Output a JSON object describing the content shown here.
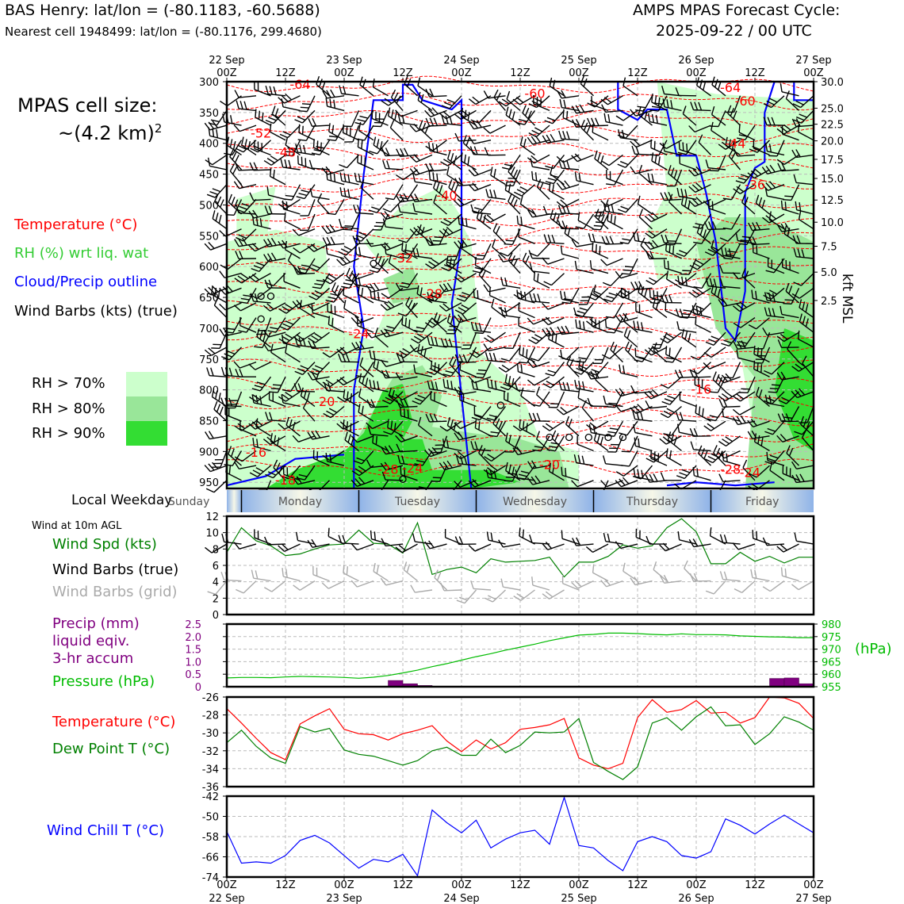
{
  "header": {
    "station_line": "BAS Henry: lat/lon = (-80.1183, -60.5688)",
    "cell_line": "Nearest cell 1948499: lat/lon = (-80.1176, 299.4680)",
    "model_line": "AMPS MPAS Forecast Cycle:",
    "cycle_line": "2025-09-22 / 00 UTC"
  },
  "legend": {
    "cell_size_label": "MPAS cell size:",
    "cell_size_value": "~(4.2 km)",
    "cell_size_exp": "2",
    "temperature": "Temperature (°C)",
    "rh": "RH (%) wrt liq. wat",
    "cloud": "Cloud/Precip outline",
    "wind": "Wind Barbs (kts) (true)",
    "rh70": "RH > 70%",
    "rh80": "RH > 80%",
    "rh90": "RH > 90%"
  },
  "colors": {
    "temp": "#ff0000",
    "rh": "#33cc33",
    "cloud": "#0000ff",
    "rh70": "#ccffcc",
    "rh80": "#99e699",
    "rh90": "#33dd33",
    "speed": "#008000",
    "precip": "#800080",
    "pressure": "#00bb00",
    "chill": "#0000ff",
    "grid_barb": "#aaaaaa",
    "weekday_band": "#8fb3e8"
  },
  "chart_data": {
    "time_axis": {
      "top_labels": [
        [
          "22 Sep",
          "00Z"
        ],
        [
          "",
          "12Z"
        ],
        [
          "23 Sep",
          "00Z"
        ],
        [
          "",
          "12Z"
        ],
        [
          "24 Sep",
          "00Z"
        ],
        [
          "",
          "12Z"
        ],
        [
          "25 Sep",
          "00Z"
        ],
        [
          "",
          "12Z"
        ],
        [
          "26 Sep",
          "00Z"
        ],
        [
          "",
          "12Z"
        ],
        [
          "27 Sep",
          "00Z"
        ]
      ],
      "bottom_labels": [
        [
          "00Z",
          "22 Sep"
        ],
        [
          "12Z",
          ""
        ],
        [
          "00Z",
          "23 Sep"
        ],
        [
          "12Z",
          ""
        ],
        [
          "00Z",
          "24 Sep"
        ],
        [
          "12Z",
          ""
        ],
        [
          "00Z",
          "25 Sep"
        ],
        [
          "12Z",
          ""
        ],
        [
          "00Z",
          "26 Sep"
        ],
        [
          "12Z",
          ""
        ],
        [
          "00Z",
          "27 Sep"
        ]
      ],
      "hours": [
        0,
        120
      ]
    },
    "weekday": {
      "label": "Local Weekday",
      "days": [
        {
          "name": "Sunday",
          "start": -5,
          "end": 3
        },
        {
          "name": "Monday",
          "start": 3,
          "end": 27
        },
        {
          "name": "Tuesday",
          "start": 27,
          "end": 51
        },
        {
          "name": "Wednesday",
          "start": 51,
          "end": 75
        },
        {
          "name": "Thursday",
          "start": 75,
          "end": 99
        },
        {
          "name": "Friday",
          "start": 99,
          "end": 120
        }
      ]
    },
    "profile": {
      "type": "time-height",
      "pressure_ticks": [
        300,
        350,
        400,
        450,
        500,
        550,
        600,
        650,
        700,
        750,
        800,
        850,
        900,
        950
      ],
      "pressure_range": [
        300,
        960
      ],
      "height_ticks": [
        {
          "label": "30.0",
          "p": 300
        },
        {
          "label": "25.0",
          "p": 343
        },
        {
          "label": "22.5",
          "p": 369
        },
        {
          "label": "20.0",
          "p": 396
        },
        {
          "label": "17.5",
          "p": 426
        },
        {
          "label": "15.0",
          "p": 457
        },
        {
          "label": "12.5",
          "p": 492
        },
        {
          "label": "10.0",
          "p": 528
        },
        {
          "label": "7.5",
          "p": 567
        },
        {
          "label": "5.0",
          "p": 609
        },
        {
          "label": "2.5",
          "p": 655
        }
      ],
      "height_axis_label": "kft MSL",
      "temp_labels": [
        {
          "t": "-64",
          "h": 15,
          "p": 305
        },
        {
          "t": "-60",
          "h": 63,
          "p": 320
        },
        {
          "t": "-64",
          "h": 103,
          "p": 310
        },
        {
          "t": "-60",
          "h": 106,
          "p": 332
        },
        {
          "t": "-52",
          "h": 7,
          "p": 384
        },
        {
          "t": "-48",
          "h": 12,
          "p": 415
        },
        {
          "t": "-44",
          "h": 104,
          "p": 401
        },
        {
          "t": "-40",
          "h": 45,
          "p": 485
        },
        {
          "t": "-36",
          "h": 108,
          "p": 468
        },
        {
          "t": "-32",
          "h": 36,
          "p": 587
        },
        {
          "t": "-28",
          "h": 42,
          "p": 645
        },
        {
          "t": "-24",
          "h": 27,
          "p": 710
        },
        {
          "t": "-20",
          "h": 20,
          "p": 820
        },
        {
          "t": "-16",
          "h": 6,
          "p": 902
        },
        {
          "t": "-18",
          "h": 12,
          "p": 947
        },
        {
          "t": "-28",
          "h": 33,
          "p": 930
        },
        {
          "t": "-24",
          "h": 38,
          "p": 928
        },
        {
          "t": "-20",
          "h": 66,
          "p": 922
        },
        {
          "t": "-16",
          "h": 97,
          "p": 800
        },
        {
          "t": "-28",
          "h": 103,
          "p": 930
        },
        {
          "t": "-24",
          "h": 107,
          "p": 935
        }
      ]
    },
    "wind10m": {
      "title": "Wind at 10m AGL",
      "speed_label": "Wind Spd (kts)",
      "barbs_true_label": "Wind Barbs (true)",
      "barbs_grid_label": "Wind Barbs (grid)",
      "y_range": [
        0,
        12
      ],
      "y_ticks": [
        0,
        2,
        4,
        6,
        8,
        10,
        12
      ],
      "speed": [
        [
          0,
          7.6
        ],
        [
          3,
          10.6
        ],
        [
          6,
          9.0
        ],
        [
          9,
          8.4
        ],
        [
          12,
          7.2
        ],
        [
          15,
          7.4
        ],
        [
          18,
          8.0
        ],
        [
          21,
          8.5
        ],
        [
          24,
          8.6
        ],
        [
          27,
          10.3
        ],
        [
          30,
          8.7
        ],
        [
          33,
          8.6
        ],
        [
          36,
          7.5
        ],
        [
          39,
          11.2
        ],
        [
          42,
          4.9
        ],
        [
          45,
          5.5
        ],
        [
          48,
          5.8
        ],
        [
          51,
          5.1
        ],
        [
          54,
          6.8
        ],
        [
          57,
          6.4
        ],
        [
          60,
          6.5
        ],
        [
          63,
          6.6
        ],
        [
          66,
          7.0
        ],
        [
          69,
          4.6
        ],
        [
          72,
          6.4
        ],
        [
          75,
          6.4
        ],
        [
          78,
          7.1
        ],
        [
          81,
          8.5
        ],
        [
          84,
          8.1
        ],
        [
          87,
          8.4
        ],
        [
          90,
          10.6
        ],
        [
          93,
          11.7
        ],
        [
          96,
          10.1
        ],
        [
          99,
          6.2
        ],
        [
          102,
          6.2
        ],
        [
          105,
          7.6
        ],
        [
          108,
          6.5
        ],
        [
          111,
          7.1
        ],
        [
          114,
          6.3
        ],
        [
          117,
          7.0
        ],
        [
          120,
          7.0
        ]
      ]
    },
    "precip_pressure": {
      "precip_label_lines": [
        "Precip (mm)",
        "liquid eqiv.",
        "3-hr accum"
      ],
      "pressure_label": "Pressure (hPa)",
      "hpa_unit": "(hPa)",
      "precip_range": [
        0,
        2.5
      ],
      "precip_ticks": [
        "0",
        "0.5",
        "1.0",
        "1.5",
        "2.0",
        "2.5"
      ],
      "pressure_range": [
        955,
        980
      ],
      "pressure_ticks": [
        "955",
        "960",
        "965",
        "970",
        "975",
        "980"
      ],
      "precip_bars": [
        [
          34.5,
          0.25
        ],
        [
          37.5,
          0.12
        ],
        [
          40.5,
          0.05
        ],
        [
          112.5,
          0.33
        ],
        [
          115.5,
          0.35
        ],
        [
          118.5,
          0.12
        ]
      ],
      "pressure": [
        [
          0,
          958.5
        ],
        [
          3,
          958.7
        ],
        [
          6,
          958.7
        ],
        [
          9,
          958.6
        ],
        [
          12,
          958.9
        ],
        [
          15,
          959.1
        ],
        [
          18,
          959.0
        ],
        [
          21,
          958.9
        ],
        [
          24,
          958.7
        ],
        [
          27,
          958.4
        ],
        [
          30,
          958.8
        ],
        [
          33,
          959.5
        ],
        [
          36,
          960.5
        ],
        [
          39,
          961.6
        ],
        [
          42,
          963.0
        ],
        [
          45,
          964.2
        ],
        [
          48,
          965.6
        ],
        [
          51,
          967.0
        ],
        [
          54,
          968.2
        ],
        [
          57,
          969.6
        ],
        [
          60,
          970.8
        ],
        [
          63,
          972.0
        ],
        [
          66,
          973.4
        ],
        [
          69,
          974.5
        ],
        [
          72,
          975.6
        ],
        [
          75,
          975.9
        ],
        [
          78,
          976.4
        ],
        [
          81,
          976.4
        ],
        [
          84,
          976.2
        ],
        [
          87,
          975.9
        ],
        [
          90,
          975.7
        ],
        [
          93,
          976.1
        ],
        [
          96,
          975.8
        ],
        [
          99,
          975.8
        ],
        [
          102,
          975.7
        ],
        [
          105,
          975.3
        ],
        [
          108,
          975.1
        ],
        [
          111,
          974.9
        ],
        [
          114,
          974.8
        ],
        [
          117,
          974.6
        ],
        [
          120,
          974.6
        ]
      ]
    },
    "temp_dew": {
      "temperature_label": "Temperature (°C)",
      "dewpoint_label": "Dew Point T (°C)",
      "y_range": [
        -36,
        -26
      ],
      "y_ticks": [
        -36,
        -34,
        -32,
        -30,
        -28,
        -26
      ],
      "temperature": [
        [
          0,
          -27.3
        ],
        [
          3,
          -28.9
        ],
        [
          6,
          -30.6
        ],
        [
          9,
          -32.2
        ],
        [
          12,
          -33.0
        ],
        [
          15,
          -29.0
        ],
        [
          18,
          -28.1
        ],
        [
          21,
          -27.3
        ],
        [
          24,
          -29.6
        ],
        [
          27,
          -30.1
        ],
        [
          30,
          -30.2
        ],
        [
          33,
          -30.8
        ],
        [
          36,
          -30.1
        ],
        [
          39,
          -29.7
        ],
        [
          42,
          -29.2
        ],
        [
          45,
          -30.9
        ],
        [
          48,
          -32.1
        ],
        [
          51,
          -30.8
        ],
        [
          54,
          -31.8
        ],
        [
          57,
          -31.1
        ],
        [
          60,
          -29.6
        ],
        [
          63,
          -29.4
        ],
        [
          66,
          -29.1
        ],
        [
          69,
          -28.4
        ],
        [
          72,
          -32.8
        ],
        [
          75,
          -33.6
        ],
        [
          78,
          -34.0
        ],
        [
          81,
          -33.4
        ],
        [
          84,
          -28.3
        ],
        [
          87,
          -26.3
        ],
        [
          90,
          -27.7
        ],
        [
          93,
          -27.4
        ],
        [
          96,
          -26.4
        ],
        [
          99,
          -27.8
        ],
        [
          102,
          -27.7
        ],
        [
          105,
          -28.9
        ],
        [
          108,
          -28.3
        ],
        [
          111,
          -26.0
        ],
        [
          114,
          -26.1
        ],
        [
          117,
          -26.7
        ],
        [
          120,
          -28.4
        ]
      ],
      "dewpoint": [
        [
          0,
          -31.1
        ],
        [
          3,
          -29.7
        ],
        [
          6,
          -31.5
        ],
        [
          9,
          -32.8
        ],
        [
          12,
          -33.4
        ],
        [
          15,
          -29.3
        ],
        [
          18,
          -29.9
        ],
        [
          21,
          -29.5
        ],
        [
          24,
          -31.9
        ],
        [
          27,
          -32.4
        ],
        [
          30,
          -32.6
        ],
        [
          33,
          -33.1
        ],
        [
          36,
          -33.6
        ],
        [
          39,
          -33.1
        ],
        [
          42,
          -32.0
        ],
        [
          45,
          -31.6
        ],
        [
          48,
          -32.5
        ],
        [
          51,
          -32.5
        ],
        [
          54,
          -30.7
        ],
        [
          57,
          -32.2
        ],
        [
          60,
          -31.4
        ],
        [
          63,
          -29.9
        ],
        [
          66,
          -30.0
        ],
        [
          69,
          -29.9
        ],
        [
          72,
          -28.4
        ],
        [
          75,
          -33.3
        ],
        [
          78,
          -34.3
        ],
        [
          81,
          -35.2
        ],
        [
          84,
          -33.8
        ],
        [
          87,
          -28.9
        ],
        [
          90,
          -28.3
        ],
        [
          93,
          -29.7
        ],
        [
          96,
          -28.2
        ],
        [
          99,
          -27.1
        ],
        [
          102,
          -29.2
        ],
        [
          105,
          -29.1
        ],
        [
          108,
          -31.3
        ],
        [
          111,
          -30.1
        ],
        [
          114,
          -28.2
        ],
        [
          117,
          -28.8
        ],
        [
          120,
          -29.7
        ]
      ]
    },
    "wind_chill": {
      "label": "Wind Chill T (°C)",
      "y_range": [
        -74,
        -42
      ],
      "y_ticks": [
        -74,
        -66,
        -58,
        -50,
        -42
      ],
      "values": [
        [
          0,
          -56
        ],
        [
          3,
          -68.5
        ],
        [
          6,
          -68.0
        ],
        [
          9,
          -68.5
        ],
        [
          12,
          -65.5
        ],
        [
          15,
          -59.5
        ],
        [
          18,
          -57.5
        ],
        [
          21,
          -60.5
        ],
        [
          24,
          -65.5
        ],
        [
          27,
          -70.5
        ],
        [
          30,
          -67.0
        ],
        [
          33,
          -68.0
        ],
        [
          36,
          -65.0
        ],
        [
          39,
          -73.5
        ],
        [
          42,
          -47.5
        ],
        [
          45,
          -52.5
        ],
        [
          48,
          -56.5
        ],
        [
          51,
          -51.5
        ],
        [
          54,
          -62.5
        ],
        [
          57,
          -59.0
        ],
        [
          60,
          -56.5
        ],
        [
          63,
          -55.5
        ],
        [
          66,
          -61.0
        ],
        [
          69,
          -42.5
        ],
        [
          72,
          -61.5
        ],
        [
          75,
          -62.5
        ],
        [
          78,
          -67.5
        ],
        [
          81,
          -71.5
        ],
        [
          84,
          -60.0
        ],
        [
          87,
          -58.0
        ],
        [
          90,
          -60.0
        ],
        [
          93,
          -65.5
        ],
        [
          96,
          -66.5
        ],
        [
          99,
          -64.0
        ],
        [
          102,
          -51.0
        ],
        [
          105,
          -53.5
        ],
        [
          108,
          -57.0
        ],
        [
          111,
          -53.0
        ],
        [
          114,
          -49.5
        ],
        [
          117,
          -53.0
        ],
        [
          120,
          -56.5
        ]
      ]
    }
  }
}
